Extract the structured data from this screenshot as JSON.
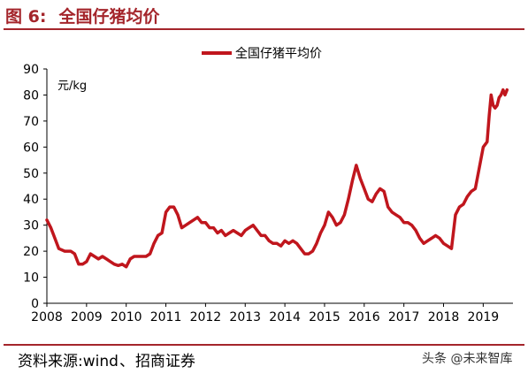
{
  "figure": {
    "label": "图 6:",
    "title": "全国仔猪均价"
  },
  "source": {
    "prefix": "资料来源:",
    "text": "wind",
    "separator": "、",
    "provider": "招商证券"
  },
  "watermark": "头条 @未来智库",
  "chart_data": {
    "type": "line",
    "unit_label": "元/kg",
    "xlabel": "",
    "ylabel": "",
    "ylim": [
      0,
      90
    ],
    "yticks": [
      0,
      10,
      20,
      30,
      40,
      50,
      60,
      70,
      80,
      90
    ],
    "xlim": [
      2008,
      2019.75
    ],
    "xticks": [
      2008,
      2009,
      2010,
      2011,
      2012,
      2013,
      2014,
      2015,
      2016,
      2017,
      2018,
      2019
    ],
    "grid": false,
    "legend_position": "top-center",
    "series": [
      {
        "name": "全国仔猪平均价",
        "color": "#c0161d",
        "x": [
          2008.0,
          2008.1,
          2008.2,
          2008.3,
          2008.45,
          2008.6,
          2008.7,
          2008.8,
          2008.9,
          2009.0,
          2009.1,
          2009.2,
          2009.3,
          2009.4,
          2009.5,
          2009.6,
          2009.7,
          2009.8,
          2009.9,
          2010.0,
          2010.1,
          2010.2,
          2010.3,
          2010.4,
          2010.5,
          2010.6,
          2010.7,
          2010.8,
          2010.9,
          2011.0,
          2011.1,
          2011.2,
          2011.3,
          2011.4,
          2011.5,
          2011.6,
          2011.7,
          2011.8,
          2011.9,
          2012.0,
          2012.1,
          2012.2,
          2012.3,
          2012.4,
          2012.5,
          2012.6,
          2012.7,
          2012.8,
          2012.9,
          2013.0,
          2013.1,
          2013.2,
          2013.3,
          2013.4,
          2013.5,
          2013.6,
          2013.7,
          2013.8,
          2013.9,
          2014.0,
          2014.1,
          2014.2,
          2014.3,
          2014.4,
          2014.5,
          2014.6,
          2014.7,
          2014.8,
          2014.9,
          2015.0,
          2015.1,
          2015.2,
          2015.3,
          2015.4,
          2015.5,
          2015.6,
          2015.7,
          2015.8,
          2015.9,
          2016.0,
          2016.1,
          2016.2,
          2016.3,
          2016.4,
          2016.5,
          2016.6,
          2016.7,
          2016.8,
          2016.9,
          2017.0,
          2017.1,
          2017.2,
          2017.3,
          2017.4,
          2017.5,
          2017.6,
          2017.7,
          2017.8,
          2017.9,
          2018.0,
          2018.1,
          2018.2,
          2018.3,
          2018.4,
          2018.5,
          2018.6,
          2018.7,
          2018.8,
          2018.9,
          2019.0,
          2019.1,
          2019.15,
          2019.2,
          2019.25,
          2019.3,
          2019.35,
          2019.4,
          2019.45,
          2019.5,
          2019.55,
          2019.6
        ],
        "values": [
          32,
          29,
          25,
          21,
          20,
          20,
          19,
          15,
          15,
          16,
          19,
          18,
          17,
          18,
          17,
          16,
          15,
          14.5,
          15,
          14,
          17,
          18,
          18,
          18,
          18,
          19,
          23,
          26,
          27,
          35,
          37,
          37,
          34,
          29,
          30,
          31,
          32,
          33,
          31,
          31,
          29,
          29,
          27,
          28,
          26,
          27,
          28,
          27,
          26,
          28,
          29,
          30,
          28,
          26,
          26,
          24,
          23,
          23,
          22,
          24,
          23,
          24,
          23,
          21,
          19,
          19,
          20,
          23,
          27,
          30,
          35,
          33,
          30,
          31,
          34,
          40,
          47,
          53,
          48,
          44,
          40,
          39,
          42,
          44,
          43,
          37,
          35,
          34,
          33,
          31,
          31,
          30,
          28,
          25,
          23,
          24,
          25,
          26,
          25,
          23,
          22,
          21,
          34,
          37,
          38,
          41,
          43,
          44,
          52,
          60,
          62,
          72,
          80,
          76,
          75,
          76,
          79,
          80,
          82,
          80,
          82
        ]
      }
    ]
  }
}
